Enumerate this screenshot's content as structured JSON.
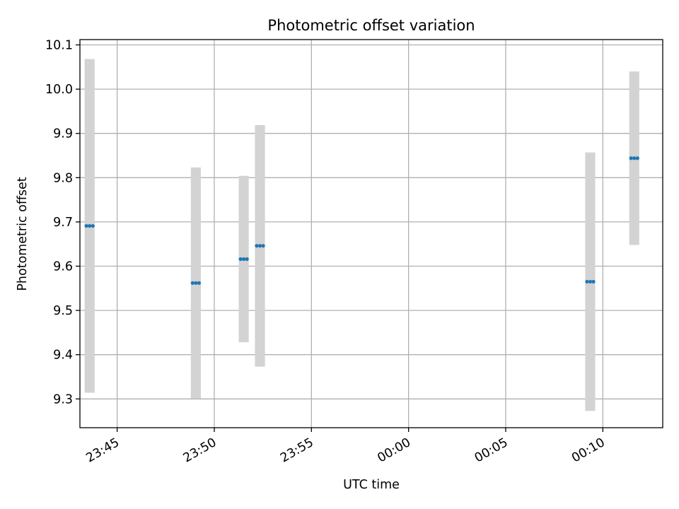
{
  "chart_data": {
    "type": "scatter",
    "title": "Photometric offset variation",
    "xlabel": "UTC time",
    "ylabel": "Photometric offset",
    "grid": true,
    "colors": {
      "points": "#1f77b4",
      "errorbars": "#d3d3d3",
      "grid": "#b0b0b0"
    },
    "xlim": [
      "23:43:05",
      "00:13:05"
    ],
    "ylim": [
      9.235,
      10.112
    ],
    "x_ticks": [
      "23:45",
      "23:50",
      "23:55",
      "00:00",
      "00:05",
      "00:10"
    ],
    "y_ticks": [
      "9.3",
      "9.4",
      "9.5",
      "9.6",
      "9.7",
      "9.8",
      "9.9",
      "10.0",
      "10.1"
    ],
    "series": [
      {
        "points": [
          {
            "x": "23:43:25",
            "y": 9.691,
            "err": 0.377
          },
          {
            "x": "23:43:35",
            "y": 9.691,
            "err": 0.377
          },
          {
            "x": "23:43:45",
            "y": 9.691,
            "err": 0.377
          },
          {
            "x": "23:48:53",
            "y": 9.562,
            "err": 0.261
          },
          {
            "x": "23:49:03",
            "y": 9.562,
            "err": 0.261
          },
          {
            "x": "23:49:13",
            "y": 9.562,
            "err": 0.261
          },
          {
            "x": "23:51:21",
            "y": 9.616,
            "err": 0.188
          },
          {
            "x": "23:51:31",
            "y": 9.616,
            "err": 0.188
          },
          {
            "x": "23:51:41",
            "y": 9.616,
            "err": 0.188
          },
          {
            "x": "23:52:11",
            "y": 9.646,
            "err": 0.273
          },
          {
            "x": "23:52:21",
            "y": 9.646,
            "err": 0.273
          },
          {
            "x": "23:52:31",
            "y": 9.646,
            "err": 0.273
          },
          {
            "x": "00:09:11",
            "y": 9.565,
            "err": 0.292
          },
          {
            "x": "00:09:21",
            "y": 9.565,
            "err": 0.292
          },
          {
            "x": "00:09:31",
            "y": 9.565,
            "err": 0.292
          },
          {
            "x": "00:11:27",
            "y": 9.844,
            "err": 0.196
          },
          {
            "x": "00:11:37",
            "y": 9.844,
            "err": 0.196
          },
          {
            "x": "00:11:47",
            "y": 9.844,
            "err": 0.196
          }
        ]
      }
    ]
  }
}
